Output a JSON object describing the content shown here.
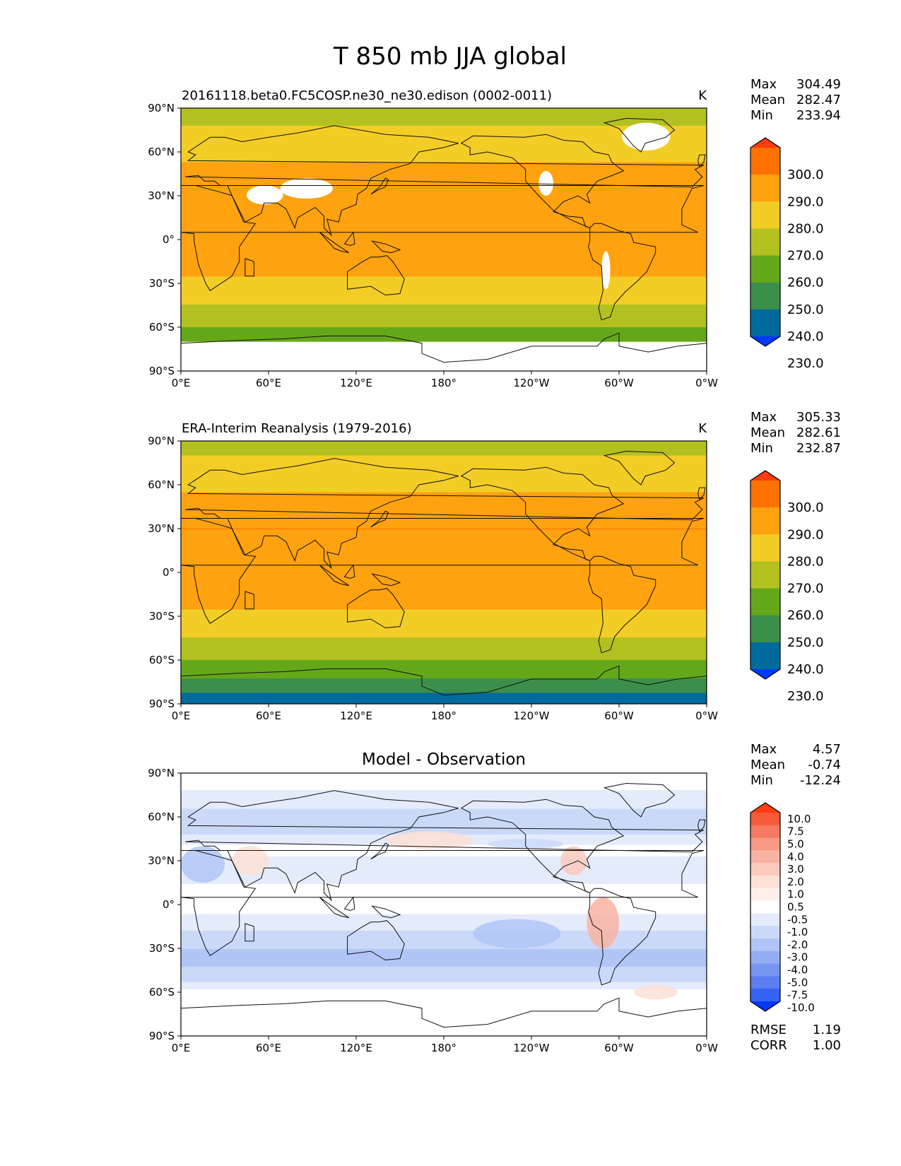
{
  "figure": {
    "title": "T 850 mb JJA global"
  },
  "chart_data": [
    {
      "type": "heatmap",
      "panel": "model",
      "title": "20161118.beta0.FC5COSP.ne30_ne30.edison (0002-0011)",
      "units": "K",
      "stats": {
        "max_label": "Max",
        "max": "304.49",
        "mean_label": "Mean",
        "mean": "282.47",
        "min_label": "Min",
        "min": "233.94"
      },
      "xlim": [
        0,
        360
      ],
      "ylim": [
        -90,
        90
      ],
      "x_ticks": [
        "0°E",
        "60°E",
        "120°E",
        "180°",
        "120°W",
        "60°W",
        "0°W"
      ],
      "y_ticks": [
        "90°N",
        "60°N",
        "30°N",
        "0°",
        "30°S",
        "60°S",
        "90°S"
      ],
      "colorbar": {
        "levels": [
          "300.0",
          "290.0",
          "280.0",
          "270.0",
          "260.0",
          "250.0",
          "240.0",
          "230.0"
        ],
        "colors": [
          "#ff3c0f",
          "#ff7200",
          "#ffa20f",
          "#f2cd26",
          "#b3c120",
          "#64a81a",
          "#3c8f4a",
          "#006a9c",
          "#0039ff"
        ]
      },
      "zonal_profile": [
        {
          "lat": 90,
          "value": 262
        },
        {
          "lat": 85,
          "value": 268
        },
        {
          "lat": 75,
          "value": 271
        },
        {
          "lat": 65,
          "value": 274
        },
        {
          "lat": 55,
          "value": 279
        },
        {
          "lat": 45,
          "value": 284
        },
        {
          "lat": 30,
          "value": 289
        },
        {
          "lat": 15,
          "value": 288
        },
        {
          "lat": 0,
          "value": 286
        },
        {
          "lat": -15,
          "value": 284
        },
        {
          "lat": -28,
          "value": 279
        },
        {
          "lat": -40,
          "value": 272
        },
        {
          "lat": -52,
          "value": 266
        },
        {
          "lat": -62,
          "value": 258
        },
        {
          "lat": -72,
          "value": 252
        },
        {
          "lat": -82,
          "value": 245
        }
      ],
      "missing": [
        {
          "region": "Tibetan Plateau",
          "lon": [
            45,
            70
          ],
          "lat": [
            24,
            37
          ]
        },
        {
          "region": "Tibetan Plateau",
          "lon": [
            68,
            104
          ],
          "lat": [
            28,
            42
          ]
        },
        {
          "region": "Greenland",
          "lon": [
            302,
            335
          ],
          "lat": [
            61,
            80
          ]
        },
        {
          "region": "Rocky Mountains",
          "lon": [
            245,
            255
          ],
          "lat": [
            30,
            47
          ]
        },
        {
          "region": "Andes",
          "lon": [
            288,
            294
          ],
          "lat": [
            -34,
            -8
          ]
        },
        {
          "region": "Antarctica",
          "lon": [
            0,
            360
          ],
          "lat": [
            -90,
            -70
          ]
        }
      ]
    },
    {
      "type": "heatmap",
      "panel": "observation",
      "title": "ERA-Interim Reanalysis (1979-2016)",
      "units": "K",
      "stats": {
        "max_label": "Max",
        "max": "305.33",
        "mean_label": "Mean",
        "mean": "282.61",
        "min_label": "Min",
        "min": "232.87"
      },
      "xlim": [
        0,
        360
      ],
      "ylim": [
        -90,
        90
      ],
      "x_ticks": [
        "0°E",
        "60°E",
        "120°E",
        "180°",
        "120°W",
        "60°W",
        "0°W"
      ],
      "y_ticks": [
        "90°N",
        "60°N",
        "30°N",
        "0°",
        "30°S",
        "60°S",
        "90°S"
      ],
      "colorbar": {
        "levels": [
          "300.0",
          "290.0",
          "280.0",
          "270.0",
          "260.0",
          "250.0",
          "240.0",
          "230.0"
        ],
        "colors": [
          "#ff3c0f",
          "#ff7200",
          "#ffa20f",
          "#f2cd26",
          "#b3c120",
          "#64a81a",
          "#3c8f4a",
          "#006a9c",
          "#0039ff"
        ]
      },
      "zonal_profile": [
        {
          "lat": 90,
          "value": 262
        },
        {
          "lat": 85,
          "value": 268
        },
        {
          "lat": 75,
          "value": 272
        },
        {
          "lat": 65,
          "value": 275
        },
        {
          "lat": 55,
          "value": 280
        },
        {
          "lat": 45,
          "value": 285
        },
        {
          "lat": 30,
          "value": 290
        },
        {
          "lat": 15,
          "value": 289
        },
        {
          "lat": 0,
          "value": 286
        },
        {
          "lat": -15,
          "value": 284
        },
        {
          "lat": -28,
          "value": 279
        },
        {
          "lat": -40,
          "value": 272
        },
        {
          "lat": -52,
          "value": 266
        },
        {
          "lat": -62,
          "value": 258
        },
        {
          "lat": -72,
          "value": 250
        },
        {
          "lat": -80,
          "value": 242
        },
        {
          "lat": -86,
          "value": 236
        }
      ]
    },
    {
      "type": "heatmap",
      "panel": "difference",
      "title": "Model - Observation",
      "stats": {
        "max_label": "Max",
        "max": "4.57",
        "mean_label": "Mean",
        "mean": "-0.74",
        "min_label": "Min",
        "min": "-12.24"
      },
      "rmse_label": "RMSE",
      "rmse": "1.19",
      "corr_label": "CORR",
      "corr": "1.00",
      "xlim": [
        0,
        360
      ],
      "ylim": [
        -90,
        90
      ],
      "x_ticks": [
        "0°E",
        "60°E",
        "120°E",
        "180°",
        "120°W",
        "60°W",
        "0°W"
      ],
      "y_ticks": [
        "90°N",
        "60°N",
        "30°N",
        "0°",
        "30°S",
        "60°S",
        "90°S"
      ],
      "colorbar": {
        "levels": [
          "10.0",
          "7.5",
          "5.0",
          "4.0",
          "3.0",
          "2.0",
          "1.0",
          "0.5",
          "-0.5",
          "-1.0",
          "-2.0",
          "-3.0",
          "-4.0",
          "-5.0",
          "-7.5",
          "-10.0"
        ],
        "colors": [
          "#ff3c0f",
          "#f75a3a",
          "#f77a60",
          "#f89a84",
          "#f9b3a2",
          "#fbcabd",
          "#fde0d6",
          "#fff0ec",
          "#ffffff",
          "#e4ebfb",
          "#cbd9f9",
          "#b1c5f6",
          "#93adf4",
          "#7896f1",
          "#5b7ef0",
          "#3561f5",
          "#0039ff"
        ]
      },
      "zonal_profile": [
        {
          "lat": 88,
          "value": -0.2
        },
        {
          "lat": 70,
          "value": -0.8
        },
        {
          "lat": 55,
          "value": -1.5
        },
        {
          "lat": 40,
          "value": -0.4
        },
        {
          "lat": 20,
          "value": -0.7
        },
        {
          "lat": 5,
          "value": -0.2
        },
        {
          "lat": -10,
          "value": -0.6
        },
        {
          "lat": -25,
          "value": -1.4
        },
        {
          "lat": -35,
          "value": -2.6
        },
        {
          "lat": -45,
          "value": -1.8
        },
        {
          "lat": -55,
          "value": -0.8
        },
        {
          "lat": -65,
          "value": 0.2
        }
      ],
      "anomalies": [
        {
          "lon": [
            278,
            300
          ],
          "lat": [
            -30,
            5
          ],
          "value": 3
        },
        {
          "lon": [
            260,
            278
          ],
          "lat": [
            20,
            40
          ],
          "value": 2.5
        },
        {
          "lon": [
            35,
            60
          ],
          "lat": [
            20,
            40
          ],
          "value": 1.5
        },
        {
          "lon": [
            140,
            200
          ],
          "lat": [
            38,
            50
          ],
          "value": 1.2
        },
        {
          "lon": [
            210,
            262
          ],
          "lat": [
            38,
            45
          ],
          "value": -1.5
        },
        {
          "lon": [
            0,
            30
          ],
          "lat": [
            15,
            40
          ],
          "value": -2.5
        },
        {
          "lon": [
            200,
            260
          ],
          "lat": [
            -30,
            -10
          ],
          "value": -2.2
        },
        {
          "lon": [
            310,
            340
          ],
          "lat": [
            -65,
            -55
          ],
          "value": 1.5
        }
      ]
    }
  ]
}
